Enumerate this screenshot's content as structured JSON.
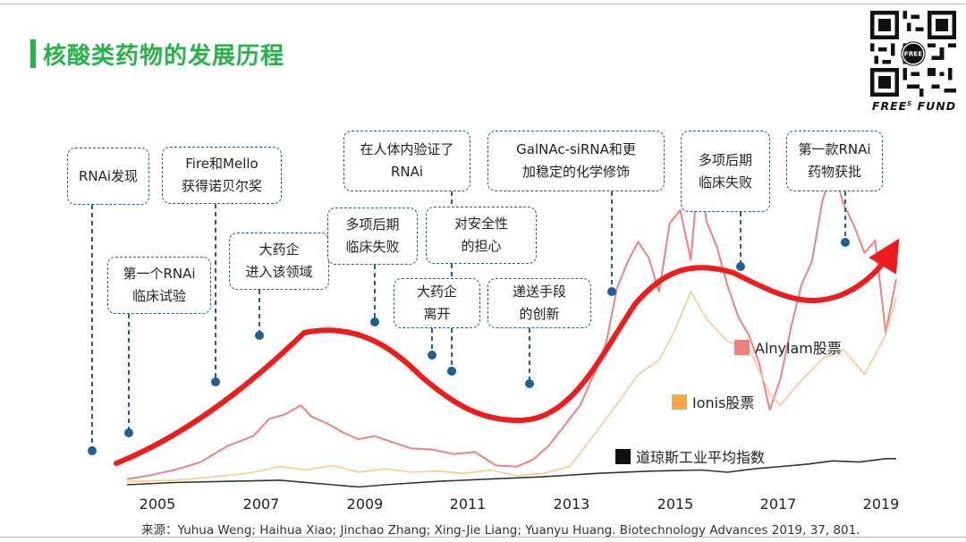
{
  "title": "核酸类药物的发展历程",
  "brand": {
    "name": "FREE",
    "sup": "S",
    "suffix": "FUND",
    "qr_icon": "qr-code-icon"
  },
  "source": "来源：Yuhua Weng; Haihua Xiao; Jinchao Zhang; Xing-Jie Liang; Yuanyu Huang. Biotechnology Advances 2019, 37, 801.",
  "colors": {
    "accent": "#27b24a",
    "trend": "#ee1c1c",
    "alnylam": "#f08080",
    "ionis": "#fbc98e",
    "dow": "#333333",
    "callout": "#1f5f96"
  },
  "chart_data": {
    "type": "line",
    "xlim": [
      2004.5,
      2019.3
    ],
    "x_ticks": [
      "2005",
      "2007",
      "2009",
      "2011",
      "2013",
      "2015",
      "2017",
      "2019"
    ],
    "series": [
      {
        "name": "Alnylam股票",
        "x": [
          2004.6,
          2005.0,
          2005.5,
          2006.0,
          2006.5,
          2007.0,
          2007.3,
          2007.6,
          2007.9,
          2008.1,
          2008.4,
          2008.7,
          2009.0,
          2009.3,
          2009.6,
          2010.0,
          2010.4,
          2010.8,
          2011.2,
          2011.6,
          2012.0,
          2012.3,
          2012.6,
          2012.9,
          2013.2,
          2013.5,
          2013.7,
          2013.9,
          2014.1,
          2014.3,
          2014.5,
          2014.7,
          2014.9,
          2015.1,
          2015.3,
          2015.45,
          2015.6,
          2015.8,
          2016.0,
          2016.2,
          2016.4,
          2016.6,
          2016.8,
          2017.0,
          2017.2,
          2017.4,
          2017.6,
          2017.8,
          2018.0,
          2018.2,
          2018.4,
          2018.6,
          2018.8,
          2019.0,
          2019.2
        ],
        "values": [
          0.5,
          0.8,
          1.3,
          2.0,
          3.4,
          4.3,
          5.8,
          6.2,
          7.0,
          6.0,
          5.4,
          4.6,
          4.0,
          4.3,
          3.8,
          3.2,
          3.1,
          2.7,
          2.9,
          1.7,
          1.6,
          2.2,
          3.4,
          5.2,
          7.0,
          10.1,
          12.6,
          17.3,
          19.6,
          21.4,
          20.0,
          17.0,
          23.0,
          24.2,
          19.8,
          27.8,
          23.2,
          20.9,
          17.5,
          14.8,
          13.2,
          10.7,
          6.6,
          9.3,
          13.8,
          17.6,
          19.7,
          25.0,
          27.8,
          24.7,
          22.8,
          20.4,
          21.5,
          13.4,
          18.1
        ]
      },
      {
        "name": "Ionis股票",
        "x": [
          2004.6,
          2005.5,
          2006.5,
          2007.0,
          2007.5,
          2008.0,
          2008.5,
          2009.0,
          2009.5,
          2010.0,
          2010.5,
          2011.0,
          2011.5,
          2012.0,
          2012.5,
          2013.0,
          2013.5,
          2013.9,
          2014.3,
          2014.7,
          2015.0,
          2015.3,
          2015.6,
          2016.0,
          2016.4,
          2016.8,
          2017.0,
          2017.4,
          2017.8,
          2018.2,
          2018.6,
          2019.0,
          2019.2
        ],
        "values": [
          0.3,
          0.4,
          0.8,
          1.1,
          1.6,
          1.3,
          1.7,
          1.1,
          1.4,
          1.1,
          1.2,
          1.0,
          1.3,
          0.8,
          1.0,
          1.6,
          4.6,
          7.1,
          9.7,
          11.0,
          13.6,
          17.0,
          14.6,
          12.6,
          12.1,
          8.0,
          7.0,
          9.2,
          11.1,
          11.9,
          9.7,
          13.2,
          16.5
        ]
      },
      {
        "name": "道琼斯工业平均指数",
        "x": [
          2004.6,
          2005.5,
          2006.5,
          2007.5,
          2008.5,
          2009.0,
          2009.5,
          2010.5,
          2011.5,
          2012.5,
          2013.5,
          2014.5,
          2015.5,
          2016.0,
          2016.5,
          2017.5,
          2018.0,
          2018.5,
          2019.0,
          2019.2
        ],
        "values": [
          0.0,
          0.2,
          0.3,
          0.4,
          0.0,
          -0.2,
          0.0,
          0.3,
          0.5,
          0.7,
          1.0,
          1.2,
          1.3,
          1.1,
          1.4,
          1.8,
          2.1,
          2.0,
          2.3,
          2.3
        ]
      }
    ],
    "legend": [
      "Alnylam股票",
      "Ionis股票",
      "道琼斯工业平均指数"
    ]
  },
  "events": [
    {
      "text": "RNAi发现",
      "x": 2004.5
    },
    {
      "text": "第一个RNAi\n临床试验",
      "x": 2004.8
    },
    {
      "text": "Fire和Mello\n获得诺贝尔奖",
      "x": 2005.9
    },
    {
      "text": "大药企\n进入该领域",
      "x": 2006.9
    },
    {
      "text": "多项后期\n临床失败",
      "x": 2009.2
    },
    {
      "text": "在人体内验证了\nRNAi",
      "x": 2009.7
    },
    {
      "text": "大药企\n离开",
      "x": 2010.1
    },
    {
      "text": "对安全性\n的担心",
      "x": 2010.4
    },
    {
      "text": "递送手段\n的创新",
      "x": 2011.6
    },
    {
      "text": "GalNAc-siRNA和更\n加稳定的化学修饰",
      "x": 2013.2
    },
    {
      "text": "多项后期\n临床失败",
      "x": 2015.2
    },
    {
      "text": "第一款RNAi\n药物获批",
      "x": 2017.7
    }
  ]
}
